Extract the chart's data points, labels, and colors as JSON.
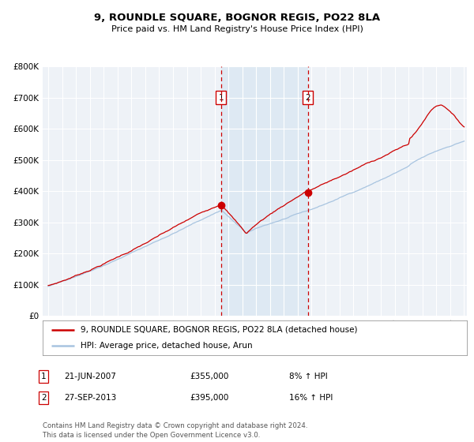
{
  "title": "9, ROUNDLE SQUARE, BOGNOR REGIS, PO22 8LA",
  "subtitle": "Price paid vs. HM Land Registry's House Price Index (HPI)",
  "legend_line1": "9, ROUNDLE SQUARE, BOGNOR REGIS, PO22 8LA (detached house)",
  "legend_line2": "HPI: Average price, detached house, Arun",
  "purchase1_label": "1",
  "purchase1_date": "21-JUN-2007",
  "purchase1_price": 355000,
  "purchase1_pct": "8%",
  "purchase2_label": "2",
  "purchase2_date": "27-SEP-2013",
  "purchase2_price": 395000,
  "purchase2_pct": "16%",
  "footer": "Contains HM Land Registry data © Crown copyright and database right 2024.\nThis data is licensed under the Open Government Licence v3.0.",
  "hpi_color": "#a8c4e0",
  "price_color": "#cc0000",
  "marker_color": "#cc0000",
  "bg_color": "#ffffff",
  "plot_bg_color": "#eef2f7",
  "grid_color": "#ffffff",
  "vspan_color": "#ccdff0",
  "ylim": [
    0,
    800000
  ],
  "yticks": [
    0,
    100000,
    200000,
    300000,
    400000,
    500000,
    600000,
    700000,
    800000
  ],
  "year_start": 1995,
  "year_end": 2025,
  "purchase1_year": 2007.47,
  "purchase2_year": 2013.74
}
